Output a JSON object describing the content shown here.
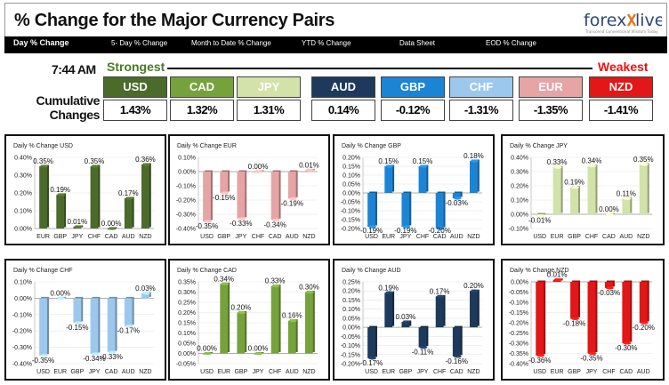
{
  "header": {
    "title": "% Change for the Major Currency Pairs",
    "logo_text": "forexlive",
    "logo_sub": "Transcend Conventional Wisdom Today"
  },
  "nav": {
    "items": [
      {
        "label": "Day % Change",
        "active": true
      },
      {
        "label": "5- Day % Change",
        "active": false
      },
      {
        "label": "Month to Date % Change",
        "active": false
      },
      {
        "label": "YTD % Change",
        "active": false
      },
      {
        "label": "Data Sheet",
        "active": false
      },
      {
        "label": "EOD % Change",
        "active": false
      }
    ]
  },
  "summary": {
    "time": "7:44 AM",
    "strongest": "Strongest",
    "weakest": "Weakest",
    "cumulative_label": "Cumulative Changes",
    "currencies": [
      {
        "code": "USD",
        "value": "1.43%",
        "color": "#4a6b2a"
      },
      {
        "code": "CAD",
        "value": "1.32%",
        "color": "#76a23c"
      },
      {
        "code": "JPY",
        "value": "1.31%",
        "color": "#d2e2a8"
      },
      {
        "code": "AUD",
        "value": "0.14%",
        "color": "#1d3a5c"
      },
      {
        "code": "GBP",
        "value": "-0.12%",
        "color": "#1c84d4"
      },
      {
        "code": "CHF",
        "value": "-1.31%",
        "color": "#9cc8ee"
      },
      {
        "code": "EUR",
        "value": "-1.35%",
        "color": "#e6a4a4"
      },
      {
        "code": "NZD",
        "value": "-1.41%",
        "color": "#e21717"
      }
    ]
  },
  "chart_data": [
    {
      "type": "bar",
      "title": "Daily % Change USD",
      "color": "#4a6b2a",
      "categories": [
        "EUR",
        "GBP",
        "JPY",
        "CHF",
        "CAD",
        "AUD",
        "NZD"
      ],
      "values": [
        0.35,
        0.19,
        0.01,
        0.35,
        0.0,
        0.17,
        0.36
      ],
      "labels": [
        "0.35%",
        "0.19%",
        "0.01%",
        "0.35%",
        "0.00%",
        "0.17%",
        "0.36%"
      ],
      "ylim": [
        0,
        0.4
      ],
      "ticks": [
        0.4,
        0.3,
        0.2,
        0.1,
        0.0
      ],
      "tick_labels": [
        "0.40%",
        "0.30%",
        "0.20%",
        "0.10%",
        "0.00%"
      ]
    },
    {
      "type": "bar",
      "title": "Daily % Change EUR",
      "color": "#e6a4a4",
      "categories": [
        "USD",
        "GBP",
        "JPY",
        "CHF",
        "CAD",
        "AUD",
        "NZD"
      ],
      "values": [
        -0.35,
        -0.15,
        -0.33,
        0.0,
        -0.34,
        -0.19,
        0.01
      ],
      "labels": [
        "-0.35%",
        "-0.15%",
        "-0.33%",
        "0.00%",
        "-0.34%",
        "-0.19%",
        "0.01%"
      ],
      "ylim": [
        -0.4,
        0.1
      ],
      "ticks": [
        0.1,
        0.0,
        -0.1,
        -0.2,
        -0.3,
        -0.4
      ],
      "tick_labels": [
        "0.10%",
        "0.00%",
        "-0.10%",
        "-0.20%",
        "-0.30%",
        "-0.40%"
      ]
    },
    {
      "type": "bar",
      "title": "Daily % Change GBP",
      "color": "#1c84d4",
      "categories": [
        "USD",
        "EUR",
        "JPY",
        "CHF",
        "CAD",
        "AUD",
        "NZD"
      ],
      "values": [
        -0.19,
        0.15,
        -0.19,
        0.15,
        -0.2,
        -0.03,
        0.18
      ],
      "labels": [
        "-0.19%",
        "0.15%",
        "-0.19%",
        "0.15%",
        "-0.20%",
        "-0.03%",
        "0.18%"
      ],
      "ylim": [
        -0.2,
        0.2
      ],
      "ticks": [
        0.2,
        0.15,
        0.1,
        0.05,
        0.0,
        -0.05,
        -0.1,
        -0.15,
        -0.2
      ],
      "tick_labels": [
        "0.20%",
        "0.15%",
        "0.10%",
        "0.05%",
        "0.00%",
        "-0.05%",
        "-0.10%",
        "-0.15%",
        "-0.20%"
      ]
    },
    {
      "type": "bar",
      "title": "Daily % Change JPY",
      "color": "#d2e2a8",
      "categories": [
        "USD",
        "EUR",
        "GBP",
        "CHF",
        "CAD",
        "AUD",
        "NZD"
      ],
      "values": [
        -0.01,
        0.33,
        0.19,
        0.34,
        0.0,
        0.11,
        0.35
      ],
      "labels": [
        "-0.01%",
        "0.33%",
        "0.19%",
        "0.34%",
        "0.00%",
        "0.11%",
        "0.35%"
      ],
      "ylim": [
        -0.1,
        0.4
      ],
      "ticks": [
        0.4,
        0.3,
        0.2,
        0.1,
        0.0,
        -0.1
      ],
      "tick_labels": [
        "0.40%",
        "0.30%",
        "0.20%",
        "0.10%",
        "0.00%",
        "-0.10%"
      ]
    },
    {
      "type": "bar",
      "title": "Daily % Change CHF",
      "color": "#9cc8ee",
      "categories": [
        "USD",
        "EUR",
        "GBP",
        "JPY",
        "CAD",
        "AUD",
        "NZD"
      ],
      "values": [
        -0.35,
        0.0,
        -0.15,
        -0.34,
        -0.33,
        -0.17,
        0.03
      ],
      "labels": [
        "-0.35%",
        "0.00%",
        "-0.15%",
        "-0.34%",
        "-0.33%",
        "-0.17%",
        "0.03%"
      ],
      "ylim": [
        -0.4,
        0.1
      ],
      "ticks": [
        0.1,
        0.0,
        -0.1,
        -0.2,
        -0.3,
        -0.4
      ],
      "tick_labels": [
        "0.10%",
        "0.00%",
        "-0.10%",
        "-0.20%",
        "-0.30%",
        "-0.40%"
      ]
    },
    {
      "type": "bar",
      "title": "Daily % Change CAD",
      "color": "#76a23c",
      "categories": [
        "USD",
        "EUR",
        "GBP",
        "JPY",
        "CHF",
        "AUD",
        "NZD"
      ],
      "values": [
        0.0,
        0.34,
        0.2,
        0.0,
        0.33,
        0.16,
        0.3
      ],
      "labels": [
        "0.00%",
        "0.34%",
        "0.20%",
        "0.00%",
        "0.33%",
        "0.16%",
        "0.30%"
      ],
      "ylim": [
        -0.05,
        0.35
      ],
      "ticks": [
        0.35,
        0.3,
        0.25,
        0.2,
        0.15,
        0.1,
        0.05,
        0.0,
        -0.05
      ],
      "tick_labels": [
        "0.35%",
        "0.30%",
        "0.25%",
        "0.20%",
        "0.15%",
        "0.10%",
        "0.05%",
        "0.00%",
        "-0.05%"
      ]
    },
    {
      "type": "bar",
      "title": "Daily % Change AUD",
      "color": "#1d3a5c",
      "categories": [
        "USD",
        "EUR",
        "GBP",
        "JPY",
        "CHF",
        "CAD",
        "NZD"
      ],
      "values": [
        -0.17,
        0.19,
        0.03,
        -0.11,
        0.17,
        -0.16,
        0.2
      ],
      "labels": [
        "-0.17%",
        "0.19%",
        "0.03%",
        "-0.11%",
        "0.17%",
        "-0.16%",
        "0.20%"
      ],
      "ylim": [
        -0.2,
        0.25
      ],
      "ticks": [
        0.25,
        0.2,
        0.15,
        0.1,
        0.05,
        0.0,
        -0.05,
        -0.1,
        -0.15,
        -0.2
      ],
      "tick_labels": [
        "0.25%",
        "0.20%",
        "0.15%",
        "0.10%",
        "0.05%",
        "0.00%",
        "-0.05%",
        "-0.10%",
        "-0.15%",
        "-0.20%"
      ]
    },
    {
      "type": "bar",
      "title": "Daily % Change NZD",
      "color": "#e21717",
      "categories": [
        "USD",
        "EUR",
        "GBP",
        "JPY",
        "CHF",
        "CAD",
        "AUD"
      ],
      "values": [
        -0.36,
        0.01,
        -0.18,
        -0.35,
        -0.03,
        -0.3,
        -0.2
      ],
      "labels": [
        "-0.36%",
        "0.01%",
        "-0.18%",
        "-0.35%",
        "-0.03%",
        "-0.30%",
        "-0.20%"
      ],
      "ylim": [
        -0.4,
        0.0
      ],
      "ticks": [
        0.0,
        -0.05,
        -0.1,
        -0.15,
        -0.2,
        -0.25,
        -0.3,
        -0.35,
        -0.4
      ],
      "tick_labels": [
        "0.00%",
        "-0.05%",
        "-0.10%",
        "-0.15%",
        "-0.20%",
        "-0.25%",
        "-0.30%",
        "-0.35%",
        "-0.40%"
      ]
    }
  ]
}
